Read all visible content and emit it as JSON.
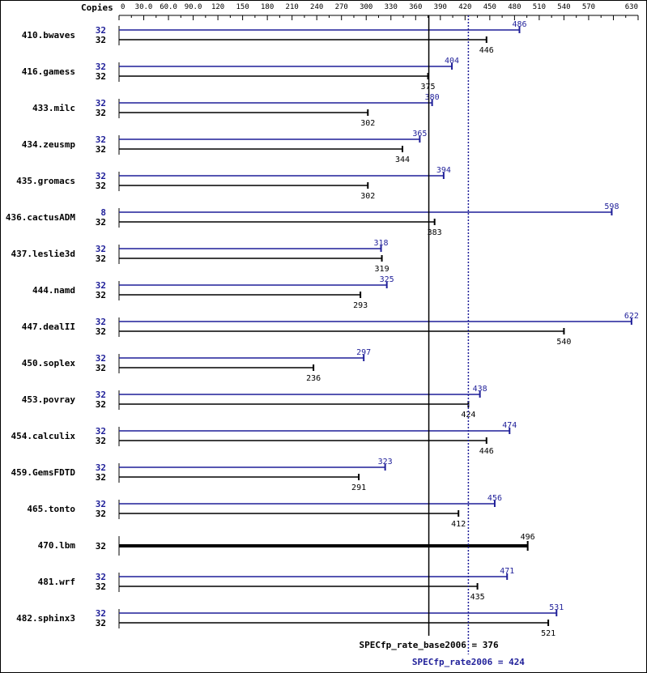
{
  "chart_data": {
    "type": "bar",
    "axis_header": "Copies",
    "xlim": [
      0,
      630
    ],
    "x_ticks": [
      "0",
      "30.0",
      "60.0",
      "90.0",
      "120",
      "150",
      "180",
      "210",
      "240",
      "270",
      "300",
      "330",
      "360",
      "390",
      "420",
      "450",
      "480",
      "510",
      "540",
      "570",
      "630"
    ],
    "colors": {
      "peak": "#1f1f99",
      "base": "#000000"
    },
    "benchmarks": [
      {
        "name": "410.bwaves",
        "peak_copies": "32",
        "peak": 486,
        "base_copies": "32",
        "base": 446
      },
      {
        "name": "416.gamess",
        "peak_copies": "32",
        "peak": 404,
        "base_copies": "32",
        "base": 375
      },
      {
        "name": "433.milc",
        "peak_copies": "32",
        "peak": 380,
        "base_copies": "32",
        "base": 302
      },
      {
        "name": "434.zeusmp",
        "peak_copies": "32",
        "peak": 365,
        "base_copies": "32",
        "base": 344
      },
      {
        "name": "435.gromacs",
        "peak_copies": "32",
        "peak": 394,
        "base_copies": "32",
        "base": 302
      },
      {
        "name": "436.cactusADM",
        "peak_copies": "8",
        "peak": 598,
        "base_copies": "32",
        "base": 383
      },
      {
        "name": "437.leslie3d",
        "peak_copies": "32",
        "peak": 318,
        "base_copies": "32",
        "base": 319
      },
      {
        "name": "444.namd",
        "peak_copies": "32",
        "peak": 325,
        "base_copies": "32",
        "base": 293
      },
      {
        "name": "447.dealII",
        "peak_copies": "32",
        "peak": 622,
        "base_copies": "32",
        "base": 540
      },
      {
        "name": "450.soplex",
        "peak_copies": "32",
        "peak": 297,
        "base_copies": "32",
        "base": 236
      },
      {
        "name": "453.povray",
        "peak_copies": "32",
        "peak": 438,
        "base_copies": "32",
        "base": 424
      },
      {
        "name": "454.calculix",
        "peak_copies": "32",
        "peak": 474,
        "base_copies": "32",
        "base": 446
      },
      {
        "name": "459.GemsFDTD",
        "peak_copies": "32",
        "peak": 323,
        "base_copies": "32",
        "base": 291
      },
      {
        "name": "465.tonto",
        "peak_copies": "32",
        "peak": 456,
        "base_copies": "32",
        "base": 412
      },
      {
        "name": "470.lbm",
        "peak_copies": null,
        "peak": null,
        "base_copies": "32",
        "base": 496
      },
      {
        "name": "481.wrf",
        "peak_copies": "32",
        "peak": 471,
        "base_copies": "32",
        "base": 435
      },
      {
        "name": "482.sphinx3",
        "peak_copies": "32",
        "peak": 531,
        "base_copies": "32",
        "base": 521
      }
    ],
    "base_reference": {
      "label": "SPECfp_rate_base2006 = 376",
      "value": 376
    },
    "peak_reference": {
      "label": "SPECfp_rate2006 = 424",
      "value": 424
    }
  }
}
